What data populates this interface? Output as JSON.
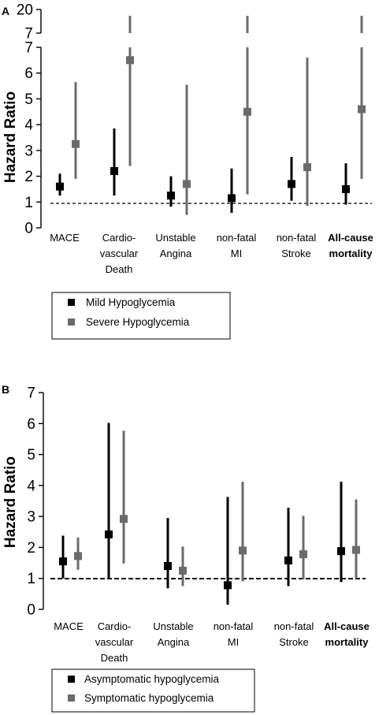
{
  "chart_data": [
    {
      "panel": "A",
      "type": "scatter",
      "ylabel": "Hazard Ratio",
      "ylim": [
        0,
        7
      ],
      "axis_break": {
        "upper_ticks": [
          7,
          20
        ]
      },
      "yticks": [
        0,
        1,
        2,
        3,
        4,
        5,
        6,
        7
      ],
      "reference_line": 1,
      "categories": [
        {
          "lines": [
            "MACE"
          ],
          "bold": false
        },
        {
          "lines": [
            "Cardio-",
            "vascular",
            "Death"
          ],
          "bold": false
        },
        {
          "lines": [
            "Unstable",
            "Angina"
          ],
          "bold": false
        },
        {
          "lines": [
            "non-fatal",
            "MI"
          ],
          "bold": false
        },
        {
          "lines": [
            "non-fatal",
            "Stroke"
          ],
          "bold": false
        },
        {
          "lines": [
            "All-cause",
            "mortality"
          ],
          "bold": true
        }
      ],
      "series": [
        {
          "name": "Mild Hypoglycemia",
          "color": "#000000",
          "values": [
            1.6,
            2.2,
            1.25,
            1.15,
            1.7,
            1.5
          ],
          "lower": [
            1.25,
            1.25,
            0.82,
            0.58,
            1.05,
            0.9
          ],
          "upper": [
            2.1,
            3.85,
            2.0,
            2.3,
            2.75,
            2.5
          ]
        },
        {
          "name": "Severe Hypoglycemia",
          "color": "#6b6b6b",
          "values": [
            3.25,
            6.5,
            1.7,
            4.5,
            2.35,
            4.6
          ],
          "lower": [
            1.9,
            2.4,
            0.5,
            1.3,
            0.85,
            1.9
          ],
          "upper": [
            5.65,
            20,
            5.55,
            20,
            6.6,
            20
          ]
        }
      ]
    },
    {
      "panel": "B",
      "type": "scatter",
      "ylabel": "Hazard Ratio",
      "ylim": [
        0,
        7
      ],
      "yticks": [
        0,
        1,
        2,
        3,
        4,
        5,
        6,
        7
      ],
      "reference_line": 1,
      "categories": [
        {
          "lines": [
            "MACE"
          ],
          "bold": false
        },
        {
          "lines": [
            "Cardio-",
            "vascular",
            "Death"
          ],
          "bold": false
        },
        {
          "lines": [
            "Unstable",
            "Angina"
          ],
          "bold": false
        },
        {
          "lines": [
            "non-fatal",
            "MI"
          ],
          "bold": false
        },
        {
          "lines": [
            "non-fatal",
            "Stroke"
          ],
          "bold": false
        },
        {
          "lines": [
            "All-cause",
            "mortality"
          ],
          "bold": true
        }
      ],
      "series": [
        {
          "name": "Asymptomatic hypoglycemia",
          "color": "#000000",
          "values": [
            1.55,
            2.42,
            1.4,
            0.78,
            1.58,
            1.88
          ],
          "lower": [
            1.0,
            1.0,
            0.68,
            0.15,
            0.75,
            0.88
          ],
          "upper": [
            2.38,
            6.02,
            2.95,
            3.63,
            3.28,
            4.12
          ]
        },
        {
          "name": "Symptomatic hypoglycemia",
          "color": "#6b6b6b",
          "values": [
            1.72,
            2.92,
            1.25,
            1.9,
            1.78,
            1.92
          ],
          "lower": [
            1.28,
            1.48,
            0.75,
            0.9,
            0.97,
            1.0
          ],
          "upper": [
            2.32,
            5.77,
            2.03,
            4.12,
            3.02,
            3.55
          ]
        }
      ]
    }
  ]
}
